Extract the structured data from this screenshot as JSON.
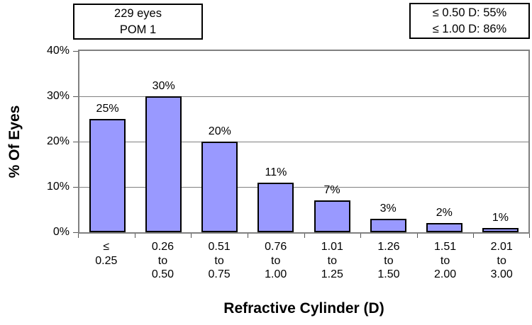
{
  "colors": {
    "bar_fill": "#9999FF",
    "bar_border": "#000000",
    "plot_border": "#808080",
    "gridline": "#808080",
    "tick": "#555555",
    "text": "#000000"
  },
  "info_box_left": {
    "line1": "229 eyes",
    "line2": "POM 1"
  },
  "info_box_right": {
    "line1": "≤ 0.50 D: 55%",
    "line2": "≤ 1.00 D: 86%"
  },
  "chart_data": {
    "type": "bar",
    "title": "",
    "xlabel": "Refractive Cylinder (D)",
    "ylabel": "% Of Eyes",
    "categories": [
      [
        "≤",
        "0.25"
      ],
      [
        "0.26",
        "to",
        "0.50"
      ],
      [
        "0.51",
        "to",
        "0.75"
      ],
      [
        "0.76",
        "to",
        "1.00"
      ],
      [
        "1.01",
        "to",
        "1.25"
      ],
      [
        "1.26",
        "to",
        "1.50"
      ],
      [
        "1.51",
        "to",
        "2.00"
      ],
      [
        "2.01",
        "to",
        "3.00"
      ]
    ],
    "values": [
      25,
      30,
      20,
      11,
      7,
      3,
      2,
      1
    ],
    "bar_labels": [
      "25%",
      "30%",
      "20%",
      "11%",
      "7%",
      "3%",
      "2%",
      "1%"
    ],
    "ylim": [
      0,
      40
    ],
    "yticks": [
      {
        "value": 0,
        "label": "0%"
      },
      {
        "value": 10,
        "label": "10%"
      },
      {
        "value": 20,
        "label": "20%"
      },
      {
        "value": 30,
        "label": "30%"
      },
      {
        "value": 40,
        "label": "40%"
      }
    ],
    "grid_values": [
      10,
      20,
      30
    ],
    "grid": "horizontal",
    "legend_position": "none"
  }
}
